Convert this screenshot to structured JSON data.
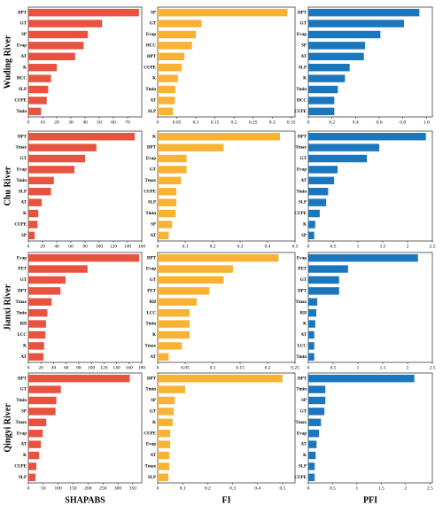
{
  "chart_data": [
    {
      "type": "bar",
      "orientation": "horizontal",
      "ylabel": "Wuding River",
      "color": "#e8533f",
      "categories": [
        "DPT",
        "GT",
        "SP",
        "Evap",
        "AT",
        "K",
        "HCC",
        "SLP",
        "CUPE",
        "Tmin"
      ],
      "values": [
        78,
        52,
        42,
        39,
        33,
        20,
        16,
        14,
        13,
        9
      ],
      "xlim": [
        0,
        80
      ],
      "xticks": [
        0,
        10,
        20,
        30,
        40,
        50,
        60,
        70
      ]
    },
    {
      "type": "bar",
      "orientation": "horizontal",
      "color": "#f9b233",
      "categories": [
        "SP",
        "GT",
        "Evap",
        "HCC",
        "DPT",
        "CUPE",
        "K",
        "Tmin",
        "AT",
        "SLP"
      ],
      "values": [
        0.34,
        0.115,
        0.1,
        0.09,
        0.07,
        0.063,
        0.053,
        0.046,
        0.045,
        0.04
      ],
      "xlim": [
        0,
        0.36
      ],
      "xticks": [
        0,
        0.05,
        0.1,
        0.15,
        0.2,
        0.25,
        0.3,
        0.35
      ]
    },
    {
      "type": "bar",
      "orientation": "horizontal",
      "color": "#1a76bd",
      "categories": [
        "DPT",
        "GT",
        "Evap",
        "SP",
        "AT",
        "SLP",
        "K",
        "Tmin",
        "HCC",
        "CUPE"
      ],
      "values": [
        0.94,
        0.81,
        0.61,
        0.48,
        0.47,
        0.35,
        0.31,
        0.25,
        0.22,
        0.22
      ],
      "xlim": [
        0,
        1.05
      ],
      "xticks": [
        0,
        0.2,
        0.4,
        0.6,
        0.8,
        {
          "value": 1,
          "label": "1.0"
        }
      ]
    },
    {
      "type": "bar",
      "orientation": "horizontal",
      "ylabel": "Chu River",
      "color": "#e8533f",
      "categories": [
        "DPT",
        "Tmax",
        "GT",
        "Evap",
        "Tmin",
        "SLP",
        "AT",
        "K",
        "CUPE",
        "SP"
      ],
      "values": [
        150,
        96,
        80,
        65,
        36,
        32,
        19,
        14,
        13,
        9
      ],
      "xlim": [
        0,
        160
      ],
      "xticks": [
        0,
        20,
        40,
        60,
        80,
        100,
        120,
        140,
        160
      ]
    },
    {
      "type": "bar",
      "orientation": "horizontal",
      "color": "#f9b233",
      "categories": [
        "K",
        "DPT",
        "Evap",
        "GT",
        "Tmax",
        "CUPE",
        "SLP",
        "Tmin",
        "SP",
        "AT"
      ],
      "values": [
        0.445,
        0.24,
        0.105,
        0.105,
        0.085,
        0.068,
        0.068,
        0.065,
        0.052,
        0.04
      ],
      "xlim": [
        0,
        0.5
      ],
      "xticks": [
        0,
        0.1,
        0.2,
        0.3,
        0.4,
        0.5
      ]
    },
    {
      "type": "bar",
      "orientation": "horizontal",
      "color": "#1a76bd",
      "categories": [
        "DPT",
        "Tmax",
        "GT",
        "Evap",
        "AT",
        "Tmin",
        "SLP",
        "CUPE",
        "K",
        "SP"
      ],
      "values": [
        2.37,
        1.43,
        1.18,
        0.59,
        0.52,
        0.4,
        0.36,
        0.23,
        0.14,
        0.12
      ],
      "xlim": [
        0,
        2.5
      ],
      "xticks": [
        0,
        0.5,
        1,
        1.5,
        2,
        2.5
      ]
    },
    {
      "type": "bar",
      "orientation": "horizontal",
      "ylabel": "Jianxi River",
      "color": "#e8533f",
      "categories": [
        "Evap",
        "PET",
        "GT",
        "DPT",
        "Tmax",
        "Tmin",
        "RH",
        "LCC",
        "K",
        "AT"
      ],
      "values": [
        176,
        94,
        59,
        51,
        37,
        30,
        28,
        27,
        25,
        24
      ],
      "xlim": [
        0,
        180
      ],
      "xticks": [
        0,
        20,
        40,
        60,
        80,
        100,
        120,
        140,
        160,
        180
      ]
    },
    {
      "type": "bar",
      "orientation": "horizontal",
      "color": "#f9b233",
      "categories": [
        "DPT",
        "Evap",
        "GT",
        "PET",
        "RH",
        "LCC",
        "Tmin",
        "K",
        "Tmax",
        "AT"
      ],
      "values": [
        0.22,
        0.137,
        0.12,
        0.094,
        0.071,
        0.058,
        0.058,
        0.058,
        0.044,
        0.02
      ],
      "xlim": [
        0,
        0.25
      ],
      "xticks": [
        0,
        0.05,
        0.1,
        0.15,
        0.2,
        0.25
      ]
    },
    {
      "type": "bar",
      "orientation": "horizontal",
      "color": "#1a76bd",
      "categories": [
        "Evap",
        "PET",
        "GT",
        "DPT",
        "Tmax",
        "RH",
        "K",
        "AT",
        "LCC",
        "Tmin"
      ],
      "values": [
        2.21,
        0.8,
        0.62,
        0.62,
        0.18,
        0.16,
        0.14,
        0.12,
        0.12,
        0.12
      ],
      "xlim": [
        0,
        2.5
      ],
      "xticks": [
        0,
        0.5,
        1,
        1.5,
        2,
        2.5
      ]
    },
    {
      "type": "bar",
      "orientation": "horizontal",
      "ylabel": "Qingyi River",
      "xlabel": "SHAPABS",
      "color": "#e8533f",
      "categories": [
        "DPT",
        "GT",
        "Tmin",
        "SP",
        "Tmax",
        "Evap",
        "AT",
        "K",
        "CUPE",
        "SLP"
      ],
      "values": [
        340,
        109,
        94,
        91,
        60,
        48,
        42,
        36,
        27,
        24
      ],
      "xlim": [
        0,
        380
      ],
      "xticks": [
        0,
        50,
        100,
        150,
        200,
        250,
        300,
        350
      ]
    },
    {
      "type": "bar",
      "orientation": "horizontal",
      "xlabel": "FI",
      "color": "#f9b233",
      "categories": [
        "DPT",
        "Tmin",
        "SP",
        "GT",
        "K",
        "CUPE",
        "Evap",
        "AT",
        "Tmax",
        "SLP"
      ],
      "values": [
        0.5,
        0.11,
        0.068,
        0.064,
        0.06,
        0.05,
        0.05,
        0.046,
        0.046,
        0.043
      ],
      "xlim": [
        0,
        0.55
      ],
      "xticks": [
        0,
        0.1,
        0.2,
        0.3,
        0.4,
        0.5
      ]
    },
    {
      "type": "bar",
      "orientation": "horizontal",
      "xlabel": "PFI",
      "color": "#1a76bd",
      "categories": [
        "DPT",
        "Tmin",
        "SP",
        "GT",
        "Tmax",
        "Evap",
        "AT",
        "K",
        "SLP",
        "CUPE"
      ],
      "values": [
        2.18,
        0.35,
        0.35,
        0.33,
        0.26,
        0.22,
        0.17,
        0.15,
        0.13,
        0.13
      ],
      "xlim": [
        0,
        2.55
      ],
      "xticks": [
        0,
        0.5,
        1,
        1.5,
        2,
        2.5
      ]
    }
  ]
}
